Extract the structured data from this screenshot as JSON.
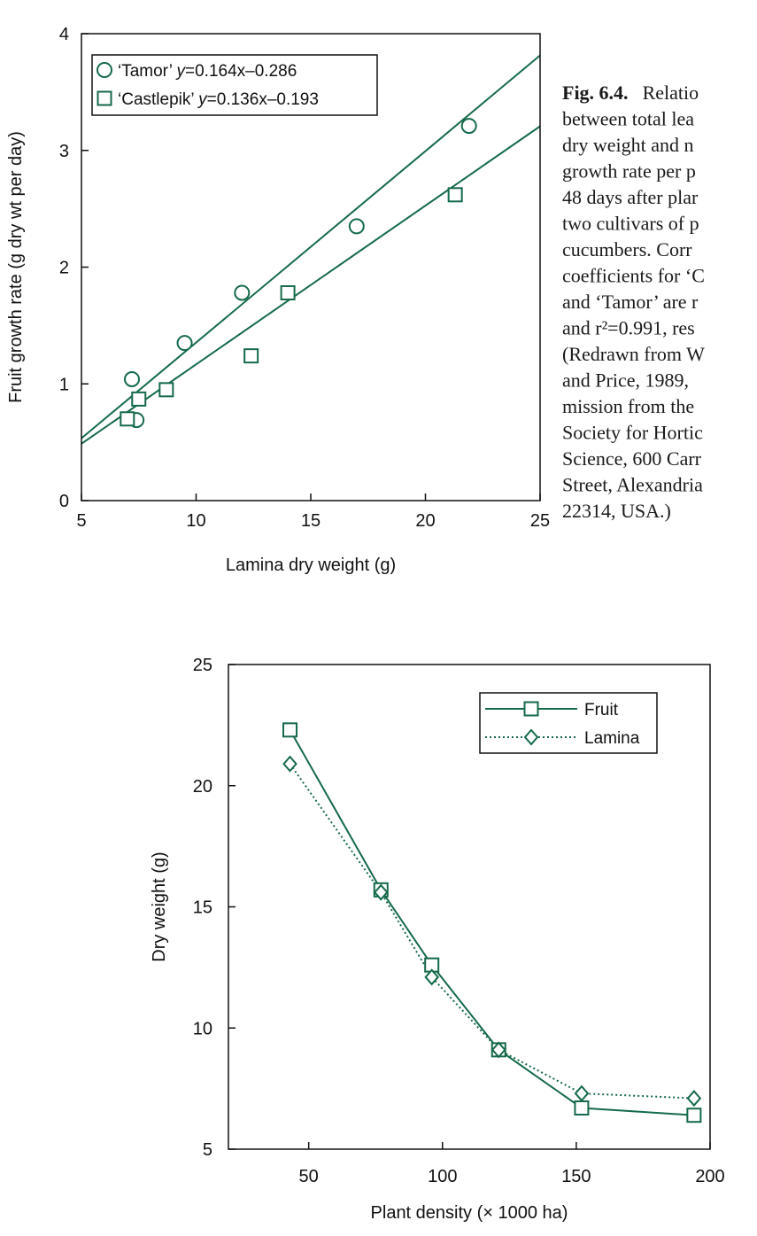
{
  "colors": {
    "series": "#156a4a",
    "axis": "#111111"
  },
  "caption": {
    "label": "Fig. 6.4.",
    "lines": [
      "Relatio",
      "between total lea",
      "dry weight and n",
      "growth rate per p",
      "48 days after plar",
      "two cultivars of p",
      "cucumbers. Corr",
      "coefficients for ‘C",
      "and ‘Tamor’ are r",
      "and r²=0.991, res",
      "(Redrawn from W",
      "and Price, 1989,",
      "mission from the",
      "Society for Hortic",
      "Science, 600 Carr",
      "Street, Alexandria",
      "22314, USA.)"
    ]
  },
  "chart_data": [
    {
      "type": "scatter",
      "title": "",
      "xlabel": "Lamina dry weight (g)",
      "ylabel": "Fruit growth rate (g dry wt per day)",
      "xlim": [
        5,
        25
      ],
      "ylim": [
        0,
        4
      ],
      "xticks": [
        "5",
        "10",
        "15",
        "20",
        "25"
      ],
      "yticks": [
        "0",
        "1",
        "2",
        "3",
        "4"
      ],
      "legend_position": "top-left",
      "series": [
        {
          "name": "‘Tamor’",
          "equation": "y=0.164x–0.286",
          "marker": "circle",
          "fit": {
            "slope": 0.164,
            "intercept": -0.286
          },
          "points": [
            [
              7.2,
              1.04
            ],
            [
              7.4,
              0.69
            ],
            [
              9.5,
              1.35
            ],
            [
              12.0,
              1.78
            ],
            [
              17.0,
              2.35
            ],
            [
              21.9,
              3.21
            ]
          ]
        },
        {
          "name": "‘Castlepik’",
          "equation": "y=0.136x–0.193",
          "marker": "square",
          "fit": {
            "slope": 0.136,
            "intercept": -0.193
          },
          "points": [
            [
              7.0,
              0.7
            ],
            [
              7.5,
              0.87
            ],
            [
              8.7,
              0.95
            ],
            [
              12.4,
              1.24
            ],
            [
              14.0,
              1.78
            ],
            [
              21.3,
              2.62
            ]
          ]
        }
      ]
    },
    {
      "type": "line",
      "title": "",
      "xlabel": "Plant density (× 1000 ha)",
      "ylabel": "Dry weight (g)",
      "xlim": [
        20,
        200
      ],
      "ylim": [
        5,
        25
      ],
      "xticks": [
        "50",
        "100",
        "150",
        "200"
      ],
      "yticks": [
        "5",
        "10",
        "15",
        "20",
        "25"
      ],
      "legend_position": "top-right",
      "series": [
        {
          "name": "Fruit",
          "marker": "square",
          "line": "solid",
          "x": [
            43,
            77,
            96,
            121,
            152,
            194
          ],
          "y": [
            22.3,
            15.7,
            12.6,
            9.1,
            6.7,
            6.4
          ]
        },
        {
          "name": "Lamina",
          "marker": "diamond",
          "line": "dotted",
          "x": [
            43,
            77,
            96,
            121,
            152,
            194
          ],
          "y": [
            20.9,
            15.6,
            12.1,
            9.1,
            7.3,
            7.1
          ]
        }
      ]
    }
  ]
}
